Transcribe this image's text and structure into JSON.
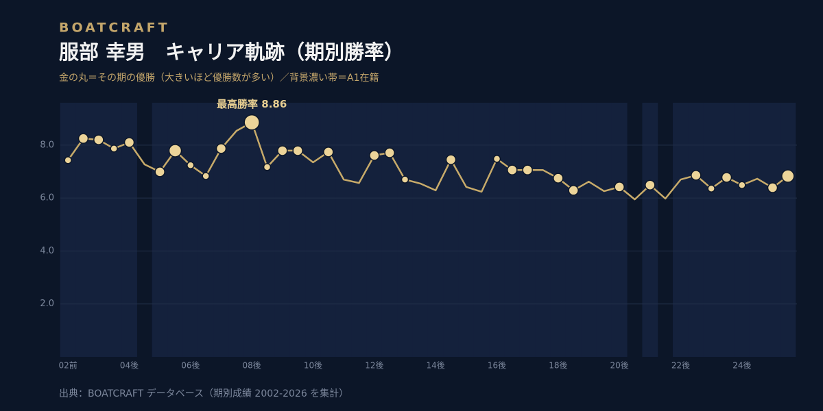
{
  "brand": "BOATCRAFT",
  "chart_data": {
    "type": "line",
    "title": "服部 幸男　キャリア軌跡（期別勝率）",
    "subtitle": "金の丸＝その期の優勝（大きいほど優勝数が多い）／背景濃い帯＝A1在籍",
    "annotation": "最高勝率 8.86",
    "source": "出典：BOATCRAFT データベース（期別成績 2002-2026 を集計）",
    "categories": [
      "02前",
      null,
      null,
      null,
      "04後",
      null,
      null,
      null,
      "06後",
      null,
      null,
      null,
      "08後",
      null,
      null,
      null,
      "10後",
      null,
      null,
      null,
      "12後",
      null,
      null,
      null,
      "14後",
      null,
      null,
      null,
      "16後",
      null,
      null,
      null,
      "18後",
      null,
      null,
      null,
      "20後",
      null,
      null,
      null,
      "22後",
      null,
      null,
      null,
      "24後",
      null,
      null,
      null
    ],
    "values": [
      7.43,
      8.25,
      8.2,
      7.87,
      8.1,
      7.27,
      6.99,
      7.79,
      7.24,
      6.83,
      7.87,
      8.54,
      8.86,
      7.17,
      7.79,
      7.79,
      7.35,
      7.74,
      6.7,
      6.57,
      7.61,
      7.71,
      6.7,
      6.55,
      6.29,
      7.45,
      6.42,
      6.24,
      7.48,
      7.06,
      7.06,
      7.06,
      6.75,
      6.29,
      6.62,
      6.26,
      6.42,
      5.95,
      6.49,
      5.98,
      6.7,
      6.86,
      6.36,
      6.78,
      6.49,
      6.73,
      6.39,
      6.83
    ],
    "wins": [
      1,
      2,
      2,
      1,
      2,
      null,
      2,
      3,
      1,
      1,
      2,
      null,
      4,
      1,
      2,
      2,
      null,
      2,
      null,
      null,
      2,
      2,
      1,
      null,
      null,
      2,
      null,
      null,
      1,
      2,
      2,
      null,
      2,
      2,
      null,
      null,
      2,
      null,
      2,
      null,
      null,
      2,
      1,
      2,
      1,
      null,
      2,
      3
    ],
    "a1": [
      true,
      true,
      true,
      true,
      true,
      false,
      true,
      true,
      true,
      true,
      true,
      true,
      true,
      true,
      true,
      true,
      true,
      true,
      true,
      true,
      true,
      true,
      true,
      true,
      true,
      true,
      true,
      true,
      true,
      true,
      true,
      true,
      true,
      true,
      true,
      true,
      true,
      false,
      true,
      false,
      true,
      true,
      true,
      true,
      true,
      true,
      true,
      true
    ],
    "ylim": [
      0,
      9.6
    ],
    "yticks": [
      {
        "value": 2,
        "label": "2.0"
      },
      {
        "value": 4,
        "label": "4.0"
      },
      {
        "value": 6,
        "label": "6.0"
      },
      {
        "value": 8,
        "label": "8.0"
      }
    ],
    "grid": true,
    "line_color": "#c8ab6a",
    "dot_color": "#ecd499",
    "band_color": "#14213c"
  }
}
